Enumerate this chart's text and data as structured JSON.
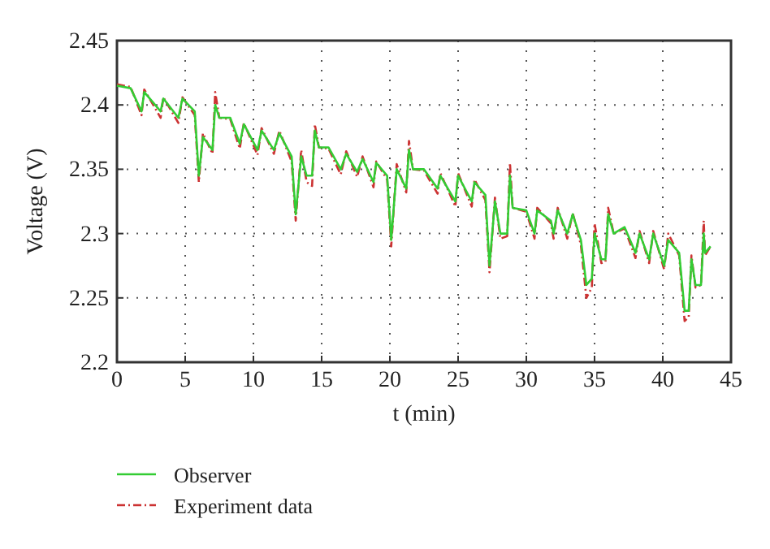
{
  "chart_data": {
    "type": "line",
    "xlabel": "t (min)",
    "ylabel": "Voltage (V)",
    "x": [
      0,
      1,
      1.8,
      2,
      3.2,
      3.4,
      4.5,
      4.8,
      5.7,
      6,
      6.3,
      7,
      7.2,
      7.5,
      8.3,
      9,
      9.3,
      10.3,
      10.6,
      11.5,
      11.9,
      12.8,
      13.1,
      13.5,
      13.9,
      14.3,
      14.5,
      14.8,
      15.5,
      16.4,
      16.8,
      17.6,
      18,
      18.8,
      19,
      19.8,
      20.1,
      20.5,
      21.2,
      21.4,
      21.7,
      22.5,
      23.5,
      23.7,
      24.8,
      25,
      26,
      26.2,
      27,
      27.3,
      27.7,
      28.1,
      28.6,
      28.8,
      29,
      30,
      30.6,
      30.8,
      31.8,
      32,
      32.3,
      33,
      33.4,
      34,
      34.4,
      34.8,
      35,
      35.5,
      35.8,
      36,
      36.4,
      37.2,
      38,
      38.3,
      39,
      39.3,
      40.1,
      40.4,
      41.2,
      41.6,
      41.9,
      42.1,
      42.4,
      42.8,
      43,
      43.1,
      43.5
    ],
    "series": [
      {
        "name": "Observer",
        "color": "#33cc33",
        "line_style": "solid",
        "values": [
          2.415,
          2.413,
          2.395,
          2.41,
          2.395,
          2.405,
          2.39,
          2.405,
          2.395,
          2.345,
          2.375,
          2.365,
          2.4,
          2.39,
          2.39,
          2.37,
          2.385,
          2.365,
          2.38,
          2.365,
          2.378,
          2.36,
          2.315,
          2.36,
          2.345,
          2.345,
          2.38,
          2.367,
          2.367,
          2.35,
          2.362,
          2.348,
          2.358,
          2.34,
          2.355,
          2.345,
          2.295,
          2.35,
          2.335,
          2.365,
          2.35,
          2.35,
          2.335,
          2.345,
          2.325,
          2.345,
          2.325,
          2.34,
          2.33,
          2.275,
          2.325,
          2.3,
          2.3,
          2.345,
          2.32,
          2.318,
          2.3,
          2.318,
          2.31,
          2.3,
          2.318,
          2.3,
          2.315,
          2.295,
          2.26,
          2.265,
          2.3,
          2.28,
          2.28,
          2.315,
          2.3,
          2.305,
          2.285,
          2.3,
          2.28,
          2.3,
          2.275,
          2.295,
          2.285,
          2.24,
          2.24,
          2.28,
          2.26,
          2.26,
          2.3,
          2.285,
          2.29
        ]
      },
      {
        "name": "Experiment data",
        "color": "#cc3333",
        "line_style": "dashdot",
        "values": [
          2.416,
          2.414,
          2.392,
          2.412,
          2.39,
          2.406,
          2.386,
          2.406,
          2.392,
          2.34,
          2.378,
          2.362,
          2.41,
          2.39,
          2.389,
          2.366,
          2.386,
          2.361,
          2.382,
          2.362,
          2.38,
          2.356,
          2.31,
          2.365,
          2.34,
          2.337,
          2.385,
          2.367,
          2.366,
          2.346,
          2.364,
          2.344,
          2.36,
          2.336,
          2.356,
          2.342,
          2.29,
          2.354,
          2.332,
          2.372,
          2.35,
          2.349,
          2.331,
          2.347,
          2.321,
          2.347,
          2.321,
          2.342,
          2.326,
          2.27,
          2.328,
          2.296,
          2.298,
          2.355,
          2.32,
          2.317,
          2.296,
          2.32,
          2.308,
          2.296,
          2.32,
          2.296,
          2.316,
          2.291,
          2.25,
          2.258,
          2.308,
          2.277,
          2.278,
          2.32,
          2.3,
          2.304,
          2.281,
          2.302,
          2.277,
          2.302,
          2.272,
          2.3,
          2.283,
          2.232,
          2.235,
          2.283,
          2.258,
          2.26,
          2.31,
          2.283,
          2.29
        ]
      }
    ],
    "xlim": [
      0,
      45
    ],
    "xticks": [
      0,
      5,
      10,
      15,
      20,
      25,
      30,
      35,
      40,
      45
    ],
    "ylim": [
      2.2,
      2.45
    ],
    "yticks": [
      2.2,
      2.25,
      2.3,
      2.35,
      2.4,
      2.45
    ],
    "grid": true,
    "legend": "bottom left",
    "marker": "none"
  }
}
